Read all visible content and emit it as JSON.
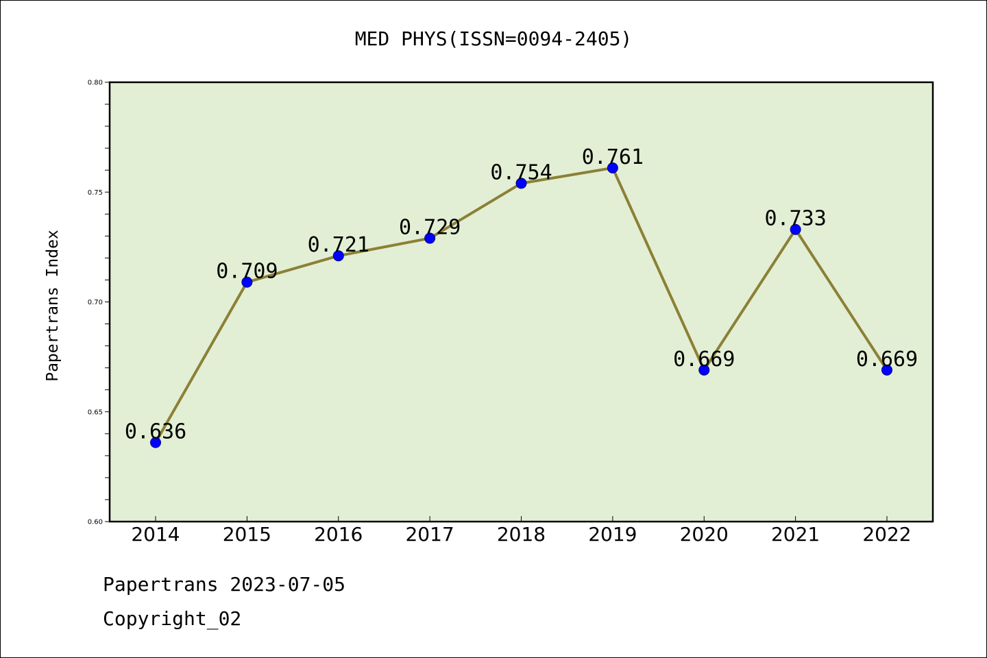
{
  "chart_data": {
    "type": "line",
    "title": "MED PHYS(ISSN=0094-2405)",
    "xlabel": "",
    "ylabel": "Papertrans Index",
    "categories": [
      "2014",
      "2015",
      "2016",
      "2017",
      "2018",
      "2019",
      "2020",
      "2021",
      "2022"
    ],
    "values": [
      0.636,
      0.709,
      0.721,
      0.729,
      0.754,
      0.761,
      0.669,
      0.733,
      0.669
    ],
    "data_labels": [
      "0.636",
      "0.709",
      "0.721",
      "0.729",
      "0.754",
      "0.761",
      "0.669",
      "0.733",
      "0.669"
    ],
    "ylim": [
      0.6,
      0.8
    ],
    "yticks": [
      "0.60",
      "0.65",
      "0.70",
      "0.75",
      "0.80"
    ],
    "grid": false,
    "legend": "none",
    "colors": {
      "plot_background": "#e2efd5",
      "line": "#8b8035",
      "marker": "#0000ff",
      "axes": "#000000"
    }
  },
  "footer": {
    "line1": "Papertrans 2023-07-05",
    "line2": "Copyright_02"
  }
}
